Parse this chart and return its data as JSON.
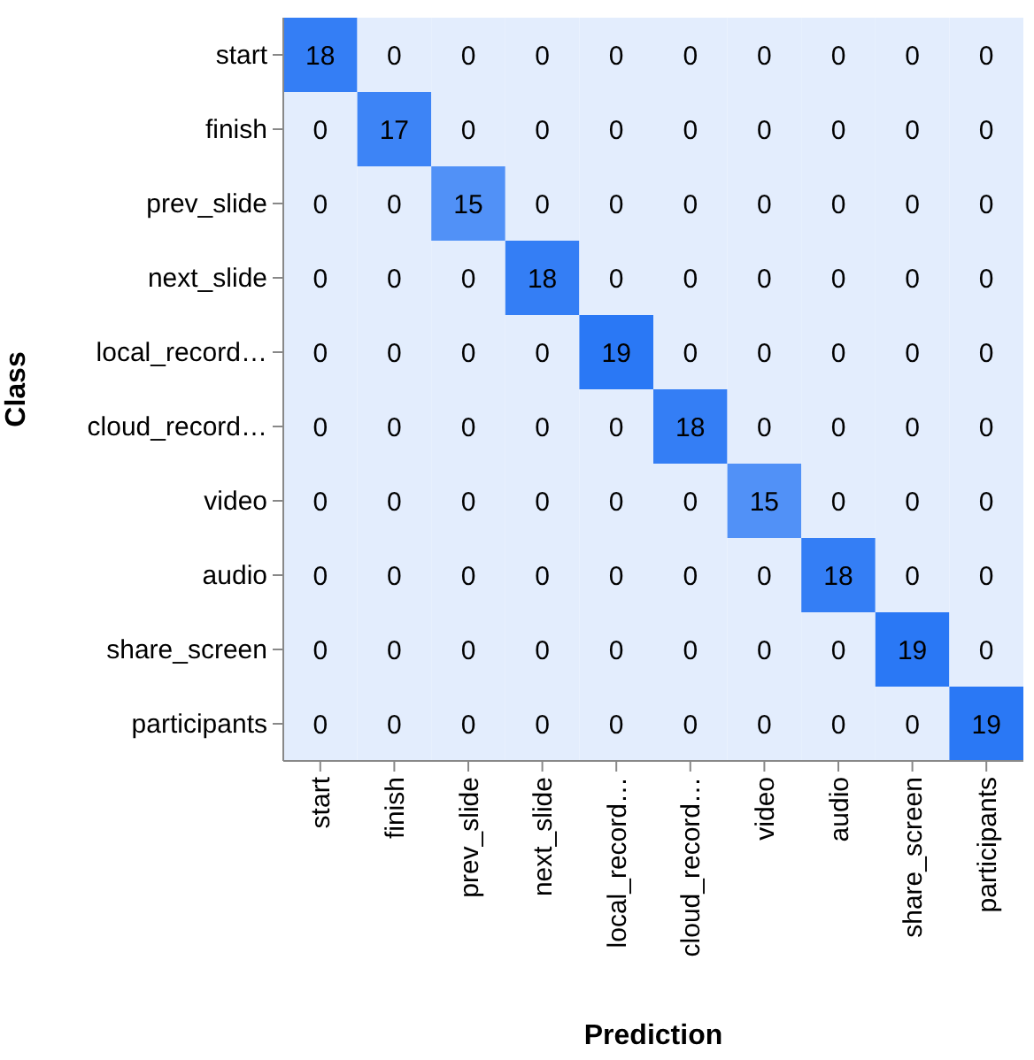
{
  "chart_data": {
    "type": "heatmap",
    "data_labels": true,
    "xlabel": "Prediction",
    "ylabel": "Class",
    "categories": [
      "start",
      "finish",
      "prev_slide",
      "next_slide",
      "local_record…",
      "cloud_record…",
      "video",
      "audio",
      "share_screen",
      "participants"
    ],
    "y_categories": [
      "start",
      "finish",
      "prev_slide",
      "next_slide",
      "local_record…",
      "cloud_record…",
      "video",
      "audio",
      "share_screen",
      "participants"
    ],
    "cells": [
      [
        18,
        0,
        0,
        0,
        0,
        0,
        0,
        0,
        0,
        0
      ],
      [
        0,
        17,
        0,
        0,
        0,
        0,
        0,
        0,
        0,
        0
      ],
      [
        0,
        0,
        15,
        0,
        0,
        0,
        0,
        0,
        0,
        0
      ],
      [
        0,
        0,
        0,
        18,
        0,
        0,
        0,
        0,
        0,
        0
      ],
      [
        0,
        0,
        0,
        0,
        19,
        0,
        0,
        0,
        0,
        0
      ],
      [
        0,
        0,
        0,
        0,
        0,
        18,
        0,
        0,
        0,
        0
      ],
      [
        0,
        0,
        0,
        0,
        0,
        0,
        15,
        0,
        0,
        0
      ],
      [
        0,
        0,
        0,
        0,
        0,
        0,
        0,
        18,
        0,
        0
      ],
      [
        0,
        0,
        0,
        0,
        0,
        0,
        0,
        0,
        19,
        0
      ],
      [
        0,
        0,
        0,
        0,
        0,
        0,
        0,
        0,
        0,
        19
      ]
    ]
  }
}
